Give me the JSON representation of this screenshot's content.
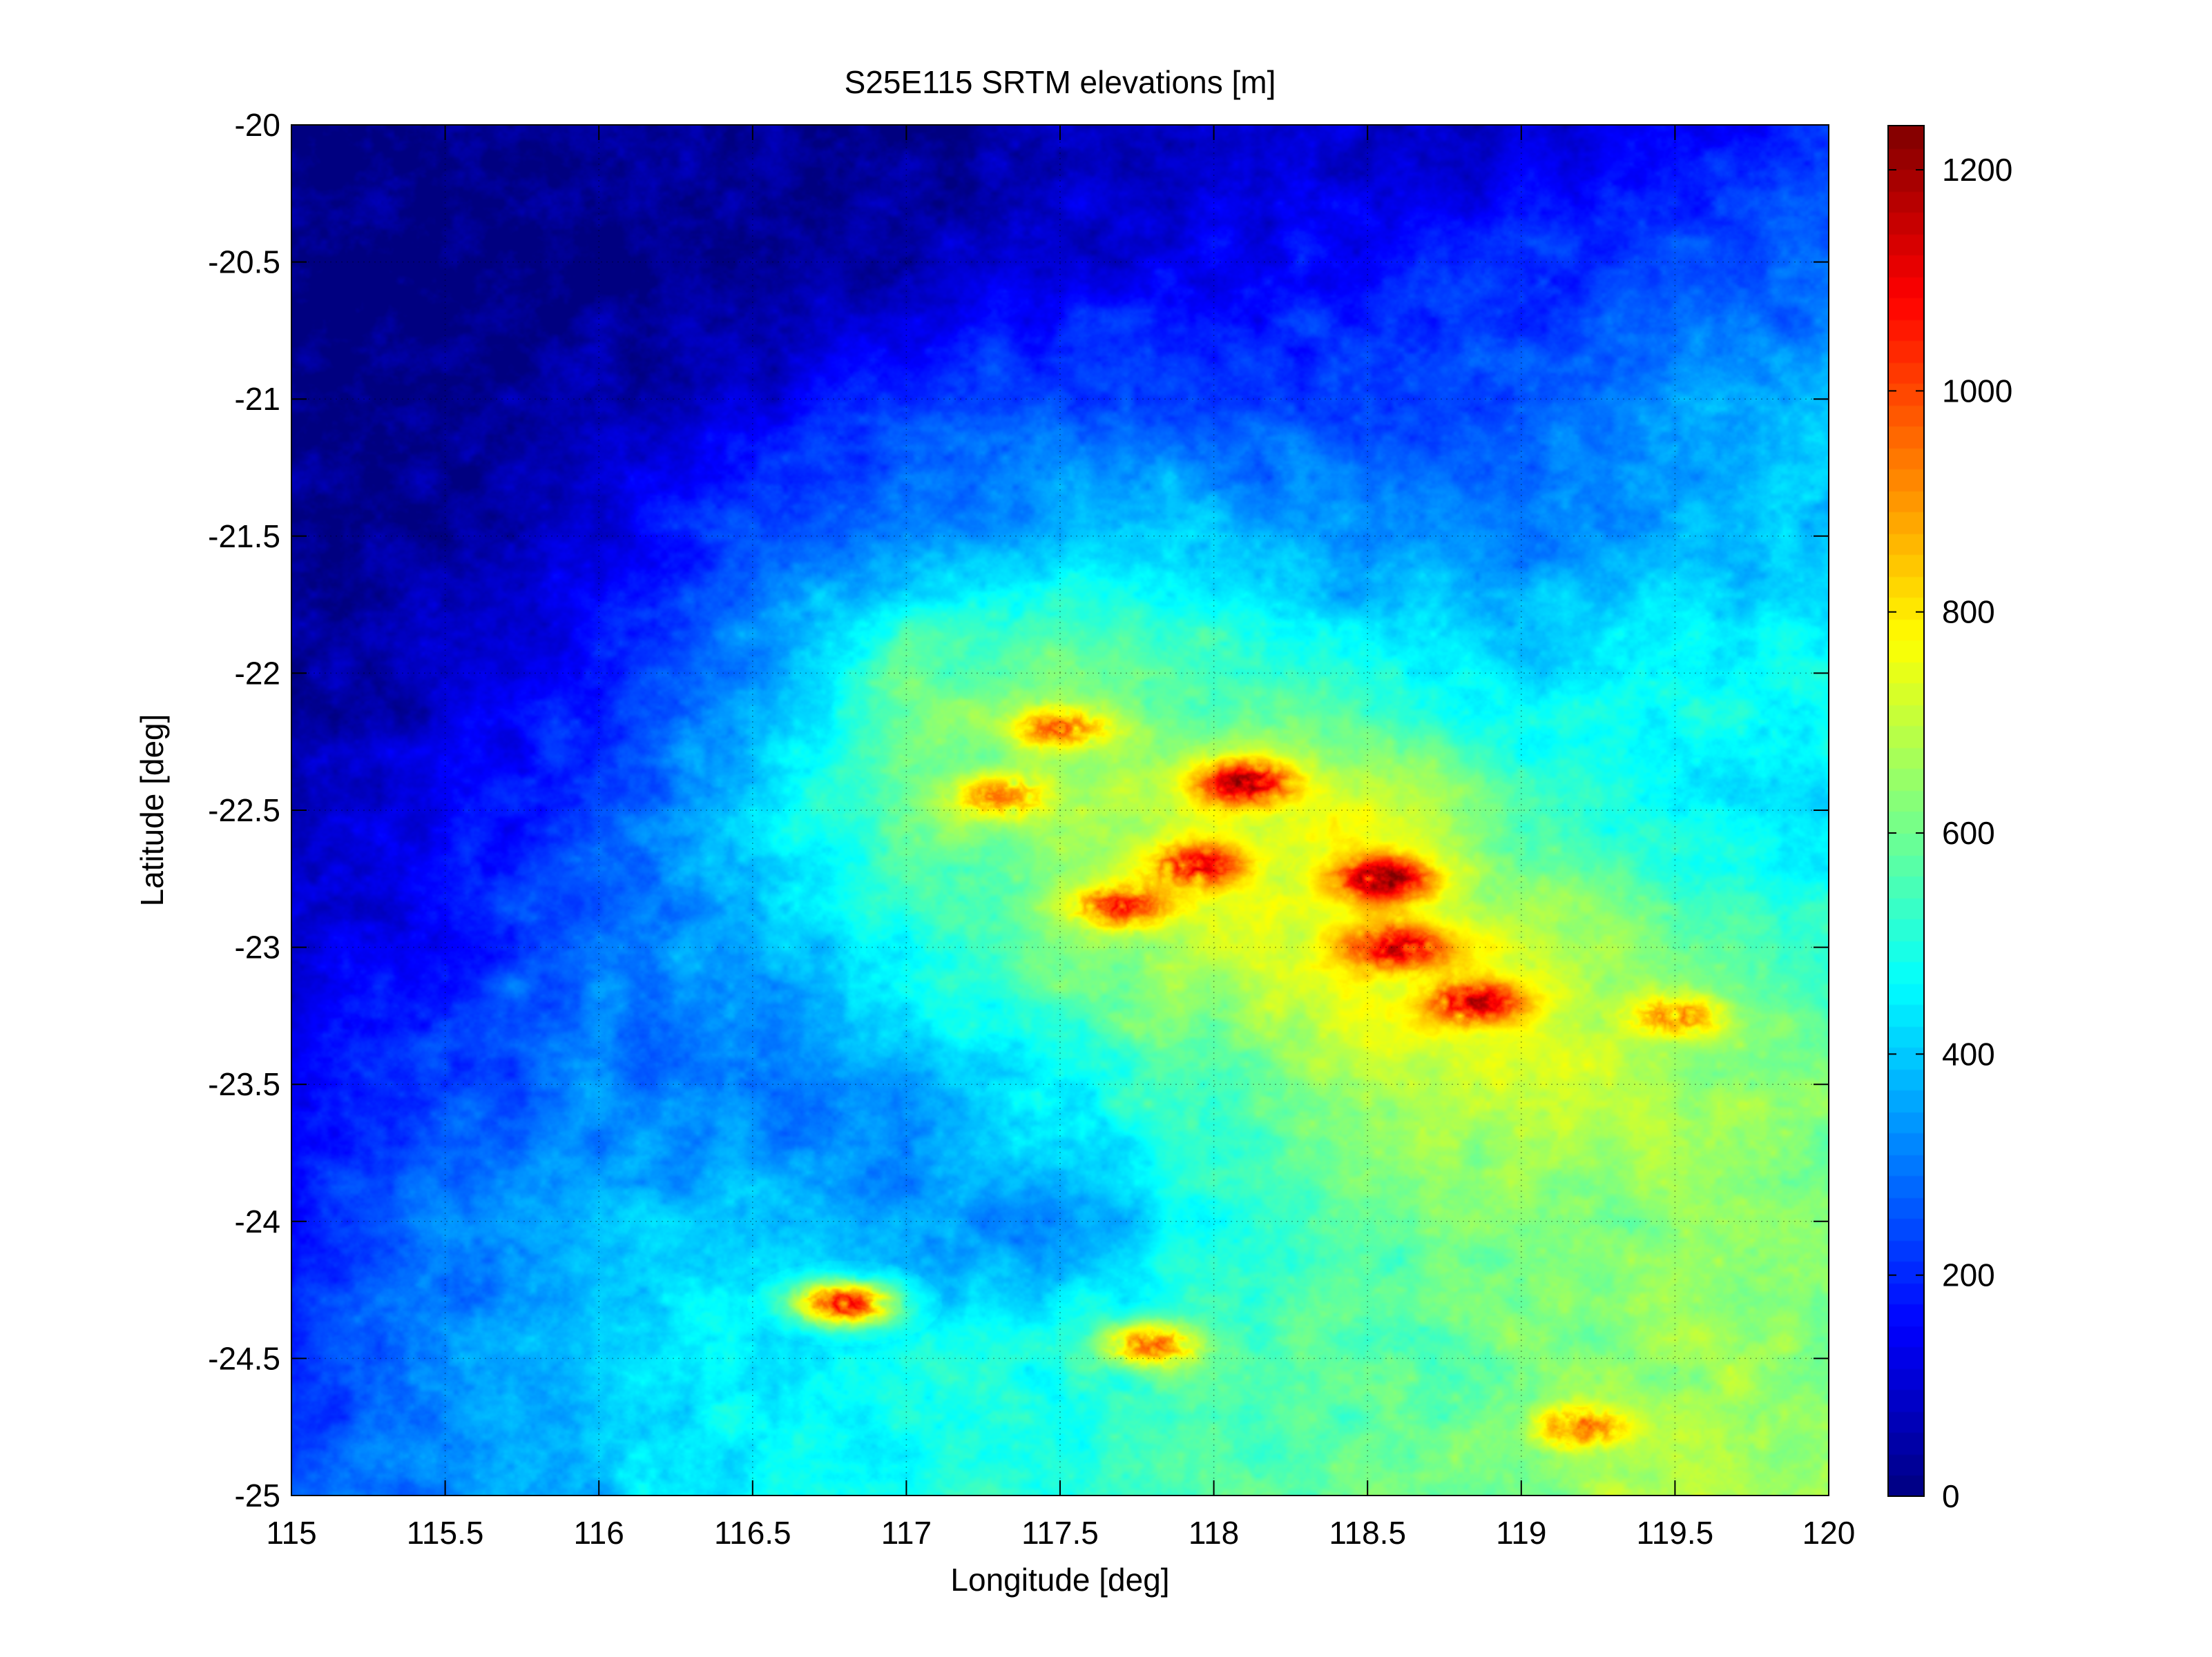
{
  "chart_data": {
    "type": "heatmap",
    "title": "S25E115 SRTM elevations [m]",
    "xlabel": "Longitude [deg]",
    "ylabel": "Latitude [deg]",
    "xlim": [
      115,
      120
    ],
    "ylim": [
      -25,
      -20
    ],
    "xticks": [
      "115",
      "115.5",
      "116",
      "116.5",
      "117",
      "117.5",
      "118",
      "118.5",
      "119",
      "119.5",
      "120"
    ],
    "yticks": [
      "-20",
      "-20.5",
      "-21",
      "-21.5",
      "-22",
      "-22.5",
      "-23",
      "-23.5",
      "-24",
      "-24.5",
      "-25"
    ],
    "grid": true,
    "colormap": "jet",
    "colorbar": {
      "range": [
        0,
        1240
      ],
      "ticks": [
        "0",
        "200",
        "400",
        "600",
        "800",
        "1000",
        "1200"
      ]
    },
    "elevation_samples": {
      "lon": [
        115,
        115.5,
        116,
        116.5,
        117,
        117.5,
        118,
        118.5,
        119,
        119.5,
        120
      ],
      "lat": [
        -20,
        -20.5,
        -21,
        -21.5,
        -22,
        -22.5,
        -23,
        -23.5,
        -24,
        -24.5,
        -25
      ],
      "z": [
        [
          10,
          10,
          15,
          20,
          30,
          60,
          80,
          90,
          120,
          160,
          210
        ],
        [
          10,
          10,
          15,
          25,
          50,
          110,
          150,
          170,
          200,
          230,
          260
        ],
        [
          15,
          20,
          40,
          120,
          220,
          260,
          250,
          230,
          260,
          330,
          370
        ],
        [
          20,
          40,
          110,
          250,
          330,
          380,
          400,
          330,
          310,
          370,
          420
        ],
        [
          40,
          90,
          180,
          340,
          600,
          620,
          560,
          480,
          440,
          480,
          460
        ],
        [
          60,
          140,
          240,
          430,
          610,
          660,
          720,
          760,
          560,
          460,
          440
        ],
        [
          100,
          180,
          300,
          360,
          500,
          620,
          700,
          780,
          720,
          620,
          540
        ],
        [
          150,
          240,
          320,
          280,
          340,
          480,
          560,
          700,
          720,
          680,
          620
        ],
        [
          180,
          300,
          380,
          420,
          330,
          340,
          500,
          580,
          620,
          640,
          620
        ],
        [
          220,
          330,
          420,
          470,
          480,
          500,
          560,
          580,
          600,
          660,
          640
        ],
        [
          240,
          320,
          400,
          460,
          500,
          520,
          560,
          600,
          620,
          700,
          660
        ]
      ],
      "peaks": [
        {
          "lon": 118.1,
          "lat": -22.4,
          "z": 1200
        },
        {
          "lon": 118.55,
          "lat": -22.75,
          "z": 1240
        },
        {
          "lon": 117.95,
          "lat": -22.7,
          "z": 1100
        },
        {
          "lon": 117.7,
          "lat": -22.85,
          "z": 1050
        },
        {
          "lon": 118.6,
          "lat": -23.0,
          "z": 1150
        },
        {
          "lon": 118.85,
          "lat": -23.2,
          "z": 1150
        },
        {
          "lon": 117.5,
          "lat": -22.2,
          "z": 950
        },
        {
          "lon": 117.3,
          "lat": -22.45,
          "z": 900
        },
        {
          "lon": 116.8,
          "lat": -24.3,
          "z": 1100
        },
        {
          "lon": 117.8,
          "lat": -24.45,
          "z": 950
        },
        {
          "lon": 119.2,
          "lat": -24.75,
          "z": 950
        },
        {
          "lon": 119.5,
          "lat": -23.25,
          "z": 900
        }
      ]
    }
  }
}
